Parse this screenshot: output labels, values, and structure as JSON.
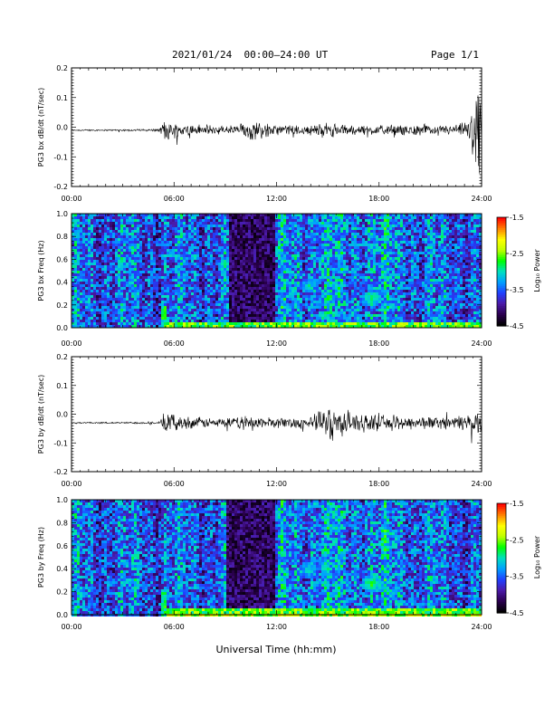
{
  "header": {
    "title": "2021/01/24  00:00–24:00 UT",
    "page": "Page 1/1"
  },
  "xlabel": "Universal Time (hh:mm)",
  "x_ticks": [
    "00:00",
    "06:00",
    "12:00",
    "18:00",
    "24:00"
  ],
  "chart_data": [
    {
      "type": "line",
      "ylabel": "PG3 bx dB/dt (nT/sec)",
      "xlim": [
        0,
        24
      ],
      "ylim": [
        -0.2,
        0.2
      ],
      "yticks": [
        "-0.2",
        "-0.1",
        "0.0",
        "0.1",
        "0.2"
      ],
      "envelope": {
        "x_hours": [
          0,
          2,
          4,
          5.2,
          5.5,
          6,
          8,
          9.5,
          10.5,
          12,
          14,
          15,
          16,
          17.5,
          19,
          21,
          22.5,
          23.3,
          23.7,
          24
        ],
        "center": [
          -0.01,
          -0.01,
          -0.01,
          -0.01,
          -0.01,
          -0.01,
          -0.01,
          -0.01,
          -0.01,
          -0.01,
          -0.01,
          -0.01,
          -0.01,
          -0.01,
          -0.01,
          -0.01,
          -0.01,
          -0.01,
          -0.02,
          -0.01
        ],
        "amplitude": [
          0.003,
          0.003,
          0.004,
          0.006,
          0.05,
          0.03,
          0.02,
          0.02,
          0.04,
          0.02,
          0.02,
          0.03,
          0.02,
          0.02,
          0.02,
          0.02,
          0.02,
          0.04,
          0.2,
          0.08
        ]
      }
    },
    {
      "type": "heatmap",
      "ylabel": "PG3 bx Freq (Hz)",
      "xlim": [
        0,
        24
      ],
      "ylim": [
        0,
        1
      ],
      "yticks": [
        "0.0",
        "0.2",
        "0.4",
        "0.6",
        "0.8",
        "1.0"
      ],
      "colorbar": {
        "label": "Log₁₀ Power",
        "range": [
          -4.5,
          -1.5
        ],
        "ticks": [
          "-1.5",
          "-2.5",
          "-3.5",
          "-4.5"
        ]
      },
      "features": {
        "quiet_band_hours": [
          9.2,
          11.8
        ],
        "onset_hour": 5.3,
        "low_freq_band": {
          "freq_max": 0.05,
          "hours": [
            5.3,
            24
          ]
        },
        "patches": [
          {
            "hour": 13.8,
            "freq": 0.38,
            "level": -3.0
          },
          {
            "hour": 15.0,
            "freq": 0.28,
            "level": -3.2
          },
          {
            "hour": 17.5,
            "freq": 0.27,
            "level": -2.7
          },
          {
            "hour": 18.5,
            "freq": 0.2,
            "level": -3.2
          }
        ]
      }
    },
    {
      "type": "line",
      "ylabel": "PG3 by dB/dt (nT/sec)",
      "xlim": [
        0,
        24
      ],
      "ylim": [
        -0.2,
        0.2
      ],
      "yticks": [
        "-0.2",
        "-0.1",
        "0.0",
        "0.1",
        "0.2"
      ],
      "envelope": {
        "x_hours": [
          0,
          2,
          4,
          5.2,
          5.5,
          6,
          8,
          9.5,
          10.5,
          12,
          14,
          15.3,
          15.6,
          16.5,
          17.5,
          19,
          21,
          22.5,
          23.5,
          24
        ],
        "center": [
          -0.03,
          -0.03,
          -0.03,
          -0.03,
          -0.03,
          -0.03,
          -0.03,
          -0.03,
          -0.03,
          -0.03,
          -0.03,
          -0.03,
          -0.03,
          -0.03,
          -0.03,
          -0.03,
          -0.03,
          -0.03,
          -0.03,
          -0.03
        ],
        "amplitude": [
          0.003,
          0.003,
          0.004,
          0.006,
          0.05,
          0.03,
          0.02,
          0.02,
          0.03,
          0.02,
          0.025,
          0.08,
          0.05,
          0.05,
          0.03,
          0.03,
          0.025,
          0.025,
          0.05,
          0.04
        ]
      }
    },
    {
      "type": "heatmap",
      "ylabel": "PG3 by Freq (Hz)",
      "xlim": [
        0,
        24
      ],
      "ylim": [
        0,
        1
      ],
      "yticks": [
        "0.0",
        "0.2",
        "0.4",
        "0.6",
        "0.8",
        "1.0"
      ],
      "colorbar": {
        "label": "Log₁₀ Power",
        "range": [
          -4.5,
          -1.5
        ],
        "ticks": [
          "-1.5",
          "-2.5",
          "-3.5",
          "-4.5"
        ]
      },
      "features": {
        "quiet_band_hours": [
          9.0,
          11.8
        ],
        "onset_hour": 5.3,
        "low_freq_band": {
          "freq_max": 0.06,
          "hours": [
            5.3,
            24
          ]
        },
        "patches": [
          {
            "hour": 13.8,
            "freq": 0.4,
            "level": -3.0
          },
          {
            "hour": 15.0,
            "freq": 0.35,
            "level": -3.2
          },
          {
            "hour": 17.5,
            "freq": 0.28,
            "level": -2.6
          },
          {
            "hour": 18.7,
            "freq": 0.2,
            "level": -3.2
          }
        ]
      }
    }
  ],
  "colors": {
    "trace": "#000000",
    "colormap": [
      "#000000",
      "#2b0050",
      "#4b1aa8",
      "#2040ff",
      "#00a0ff",
      "#00e0c0",
      "#00ff00",
      "#c0ff00",
      "#ffff00",
      "#ff8000",
      "#ff0000"
    ]
  }
}
